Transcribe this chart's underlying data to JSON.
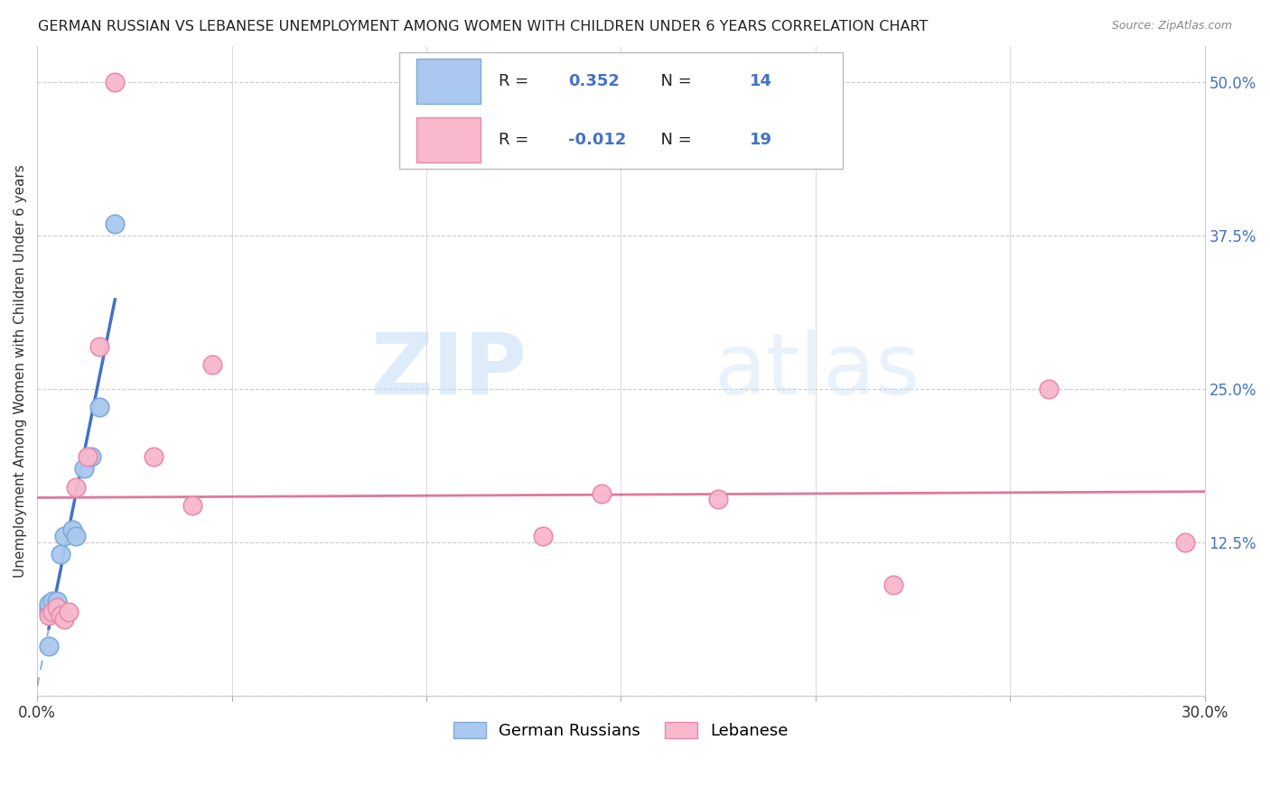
{
  "title": "GERMAN RUSSIAN VS LEBANESE UNEMPLOYMENT AMONG WOMEN WITH CHILDREN UNDER 6 YEARS CORRELATION CHART",
  "source": "Source: ZipAtlas.com",
  "ylabel": "Unemployment Among Women with Children Under 6 years",
  "xlim": [
    0.0,
    0.3
  ],
  "ylim": [
    0.0,
    0.53
  ],
  "xticks": [
    0.0,
    0.05,
    0.1,
    0.15,
    0.2,
    0.25,
    0.3
  ],
  "xticklabels": [
    "0.0%",
    "",
    "",
    "",
    "",
    "",
    "30.0%"
  ],
  "yticks_right": [
    0.0,
    0.125,
    0.25,
    0.375,
    0.5
  ],
  "yticklabels_right": [
    "",
    "12.5%",
    "25.0%",
    "37.5%",
    "50.0%"
  ],
  "blue_color": "#aac8f0",
  "blue_edge": "#7aaad8",
  "pink_color": "#f8b8cc",
  "pink_edge": "#e888aa",
  "blue_line_color": "#4472c4",
  "pink_line_color": "#e07898",
  "R_blue": 0.352,
  "N_blue": 14,
  "R_pink": -0.012,
  "N_pink": 19,
  "german_russians_x": [
    0.003,
    0.003,
    0.003,
    0.003,
    0.004,
    0.005,
    0.006,
    0.007,
    0.009,
    0.01,
    0.012,
    0.014,
    0.016,
    0.02
  ],
  "german_russians_y": [
    0.068,
    0.072,
    0.075,
    0.04,
    0.077,
    0.077,
    0.115,
    0.13,
    0.135,
    0.13,
    0.185,
    0.195,
    0.235,
    0.385
  ],
  "lebanese_x": [
    0.003,
    0.004,
    0.005,
    0.006,
    0.007,
    0.008,
    0.01,
    0.013,
    0.016,
    0.02,
    0.03,
    0.04,
    0.045,
    0.13,
    0.145,
    0.175,
    0.22,
    0.26,
    0.295
  ],
  "lebanese_y": [
    0.065,
    0.068,
    0.072,
    0.065,
    0.062,
    0.068,
    0.17,
    0.195,
    0.285,
    0.5,
    0.195,
    0.155,
    0.27,
    0.13,
    0.165,
    0.16,
    0.09,
    0.25,
    0.125
  ],
  "watermark_zip": "ZIP",
  "watermark_atlas": "atlas",
  "background_color": "#ffffff",
  "grid_color": "#cccccc",
  "title_fontsize": 11.5,
  "axis_label_fontsize": 11,
  "tick_fontsize": 12,
  "legend_fontsize": 13
}
